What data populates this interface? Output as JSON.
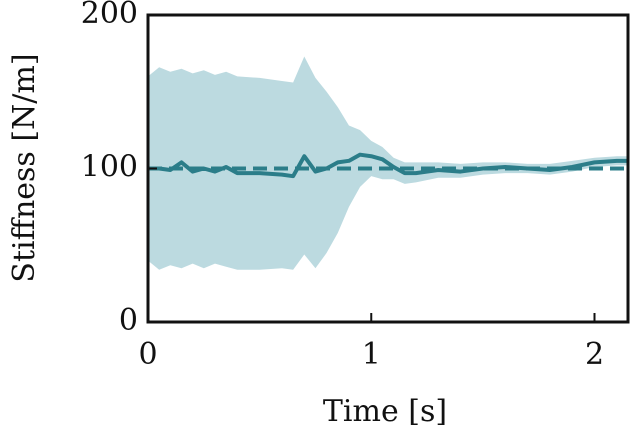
{
  "chart_data": {
    "type": "line",
    "xlabel": "Time [s]",
    "ylabel": "Stiffness [N/m]",
    "x": [
      0,
      0.05,
      0.1,
      0.15,
      0.2,
      0.25,
      0.3,
      0.35,
      0.4,
      0.5,
      0.6,
      0.65,
      0.7,
      0.75,
      0.8,
      0.85,
      0.9,
      0.95,
      1.0,
      1.05,
      1.1,
      1.15,
      1.2,
      1.3,
      1.4,
      1.5,
      1.6,
      1.7,
      1.8,
      1.9,
      2.0,
      2.1,
      2.15
    ],
    "series": [
      {
        "color": "#2b7d89",
        "values": [
          100,
          100,
          99,
          104,
          98,
          100,
          98,
          101,
          97,
          97,
          96,
          95,
          108,
          98,
          100,
          104,
          105,
          109,
          108,
          106,
          101,
          97,
          97,
          99,
          98,
          100,
          101,
          100,
          99,
          101,
          104,
          105,
          105
        ]
      }
    ],
    "band": {
      "color": "#bcdae0",
      "upper": [
        160,
        166,
        163,
        165,
        162,
        164,
        161,
        163,
        160,
        159,
        157,
        156,
        173,
        159,
        150,
        140,
        128,
        125,
        118,
        114,
        107,
        104,
        104,
        104,
        103,
        104,
        104,
        103,
        103,
        105,
        107,
        108,
        108
      ],
      "lower": [
        40,
        34,
        37,
        35,
        38,
        35,
        38,
        36,
        34,
        34,
        35,
        34,
        44,
        35,
        45,
        58,
        75,
        88,
        95,
        93,
        93,
        90,
        91,
        94,
        94,
        96,
        97,
        97,
        96,
        98,
        101,
        102,
        102
      ]
    },
    "hlines": [
      {
        "value": 100,
        "color": "#2b7d89",
        "style": "dashed"
      }
    ],
    "xlim": [
      0,
      2.15
    ],
    "ylim": [
      0,
      200
    ],
    "xticks": [
      0,
      1,
      2
    ],
    "yticks": [
      0,
      100,
      200
    ],
    "grid": false
  }
}
